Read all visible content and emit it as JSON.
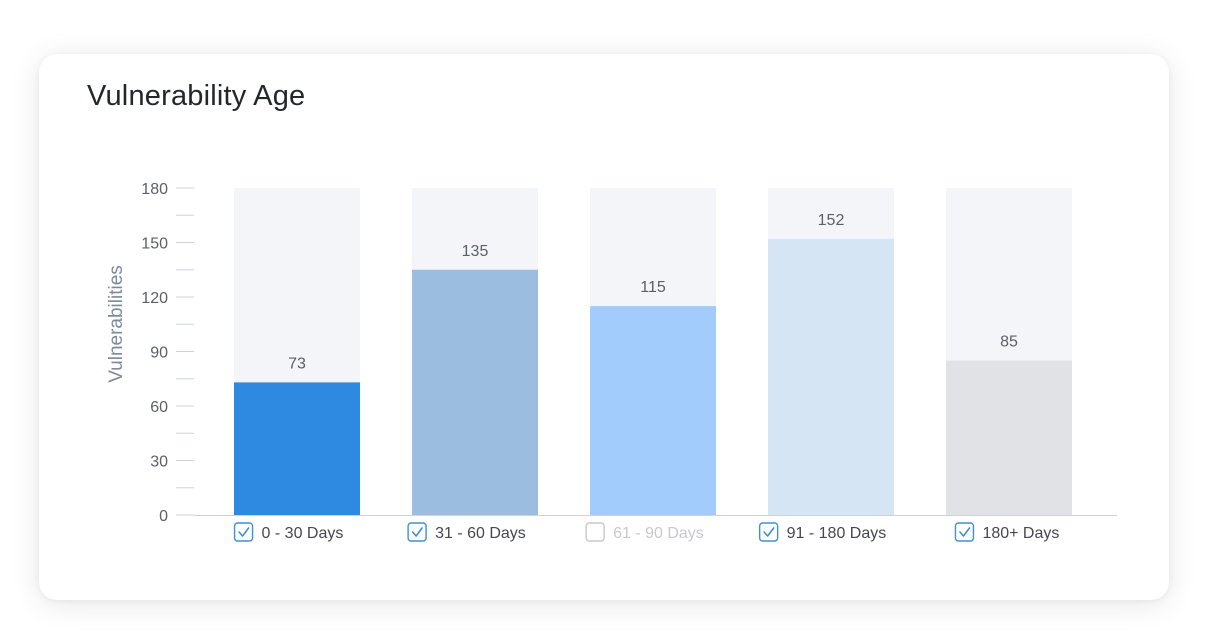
{
  "title": "Vulnerability Age",
  "chart_data": {
    "type": "bar",
    "title": "Vulnerability Age",
    "xlabel": "",
    "ylabel": "Vulnerabilities",
    "ylim": [
      0,
      180
    ],
    "yticks": [
      0,
      30,
      60,
      90,
      120,
      150,
      180
    ],
    "grid": false,
    "legend_position": "bottom",
    "categories": [
      "0 - 30 Days",
      "31 - 60 Days",
      "61 - 90 Days",
      "91 - 180 Days",
      "180+ Days"
    ],
    "values": [
      73,
      135,
      115,
      152,
      85
    ],
    "data_labels": [
      "73",
      "135",
      "115",
      "152",
      "85"
    ],
    "legend_checked": [
      true,
      true,
      false,
      true,
      true
    ],
    "colors": [
      "#2e8ae0",
      "#9bbde0",
      "#a2ccfb",
      "#d5e5f4",
      "#e0e2e6"
    ],
    "background_color": "#f3f5f8",
    "axis_color": "#cfd3d8",
    "tick_text_color": "#5b5f66",
    "label_color": "#7e8a99",
    "checkbox_color": "#3f8fd6",
    "disabled_color": "#c6c9cd"
  }
}
